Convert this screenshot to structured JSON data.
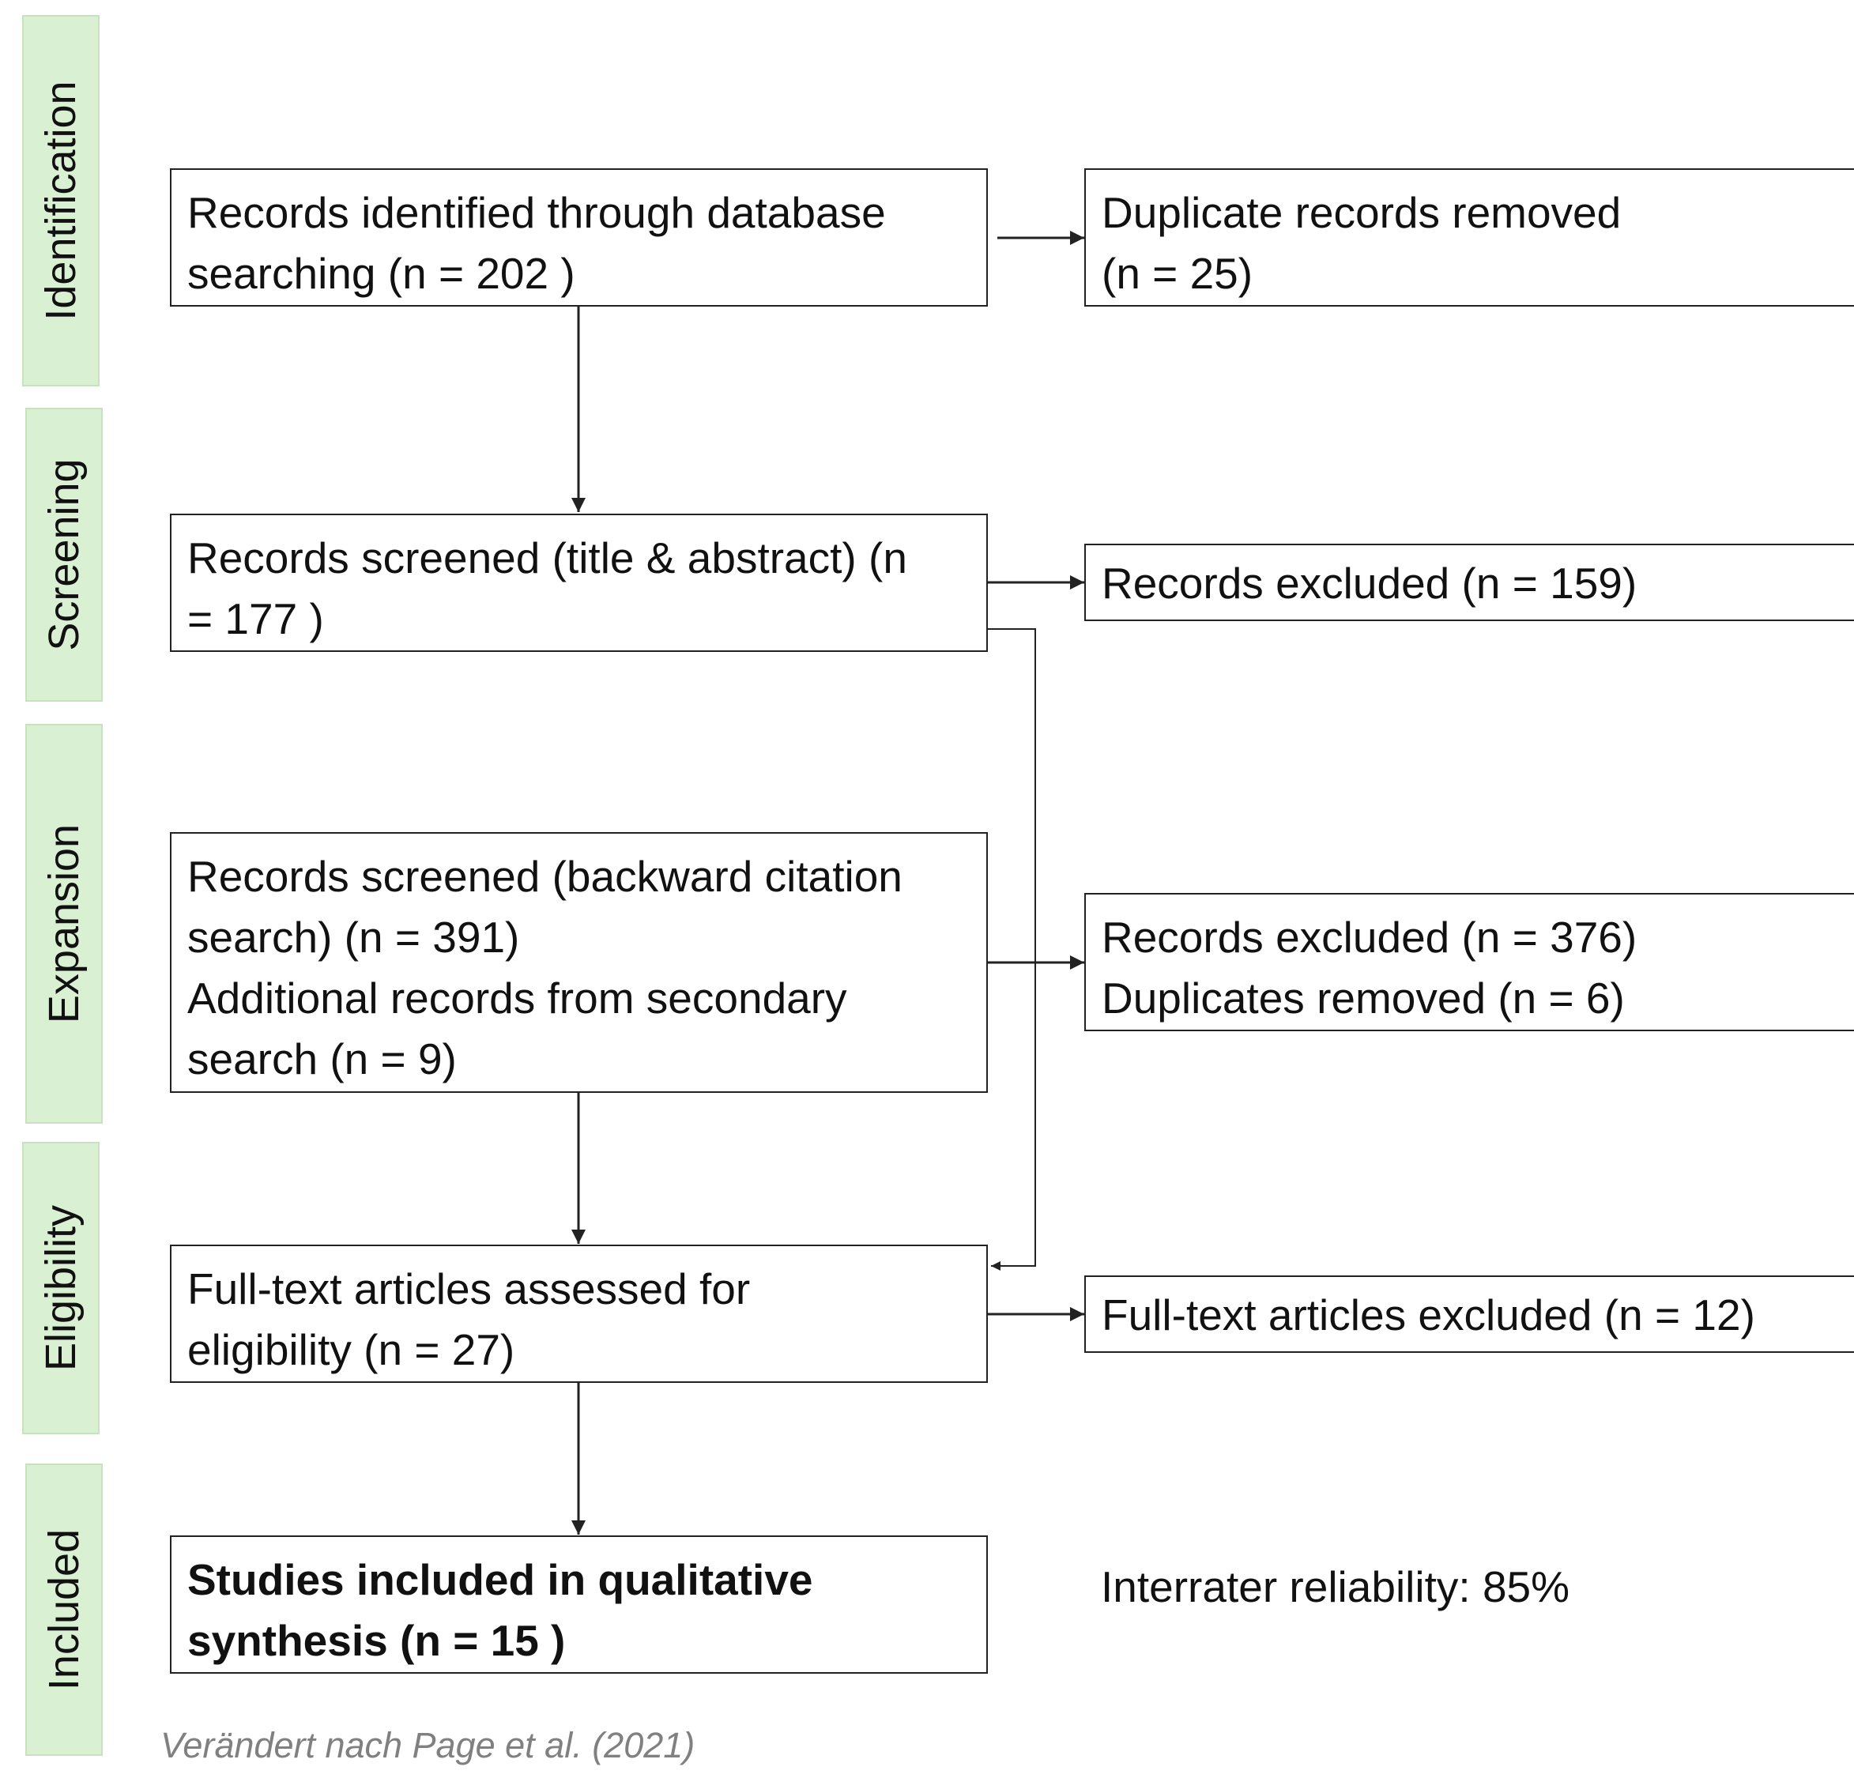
{
  "phases": {
    "identification": "Identification",
    "screening": "Screening",
    "expansion": "Expansion",
    "eligibility": "Eligibility",
    "included": "Included"
  },
  "boxes": {
    "identified": [
      "Records identified through database",
      "searching (n = 202 )"
    ],
    "duplicates": [
      "Duplicate records removed",
      "(n = 25)"
    ],
    "screened": [
      "Records screened (title & abstract) (n",
      "= 177 )"
    ],
    "excluded_screening": [
      "Records excluded (n = 159)"
    ],
    "expansion": [
      "Records screened (backward citation",
      "search) (n = 391)",
      "Additional records from secondary",
      "search (n = 9)"
    ],
    "excluded_expansion": [
      "Records excluded (n = 376)",
      "Duplicates removed (n = 6)"
    ],
    "fulltext": [
      "Full-text articles assessed for",
      "eligibility (n = 27)"
    ],
    "fulltext_excluded": [
      "Full-text articles excluded (n = 12)"
    ],
    "included": [
      "Studies included in qualitative",
      "synthesis (n = 15 )"
    ]
  },
  "note": "Interrater reliability: 85%",
  "caption": "Verändert nach Page et al. (2021)",
  "colors": {
    "phase_fill": "#d9f0d3",
    "phase_border": "#c6e3be",
    "caption": "#808080"
  }
}
